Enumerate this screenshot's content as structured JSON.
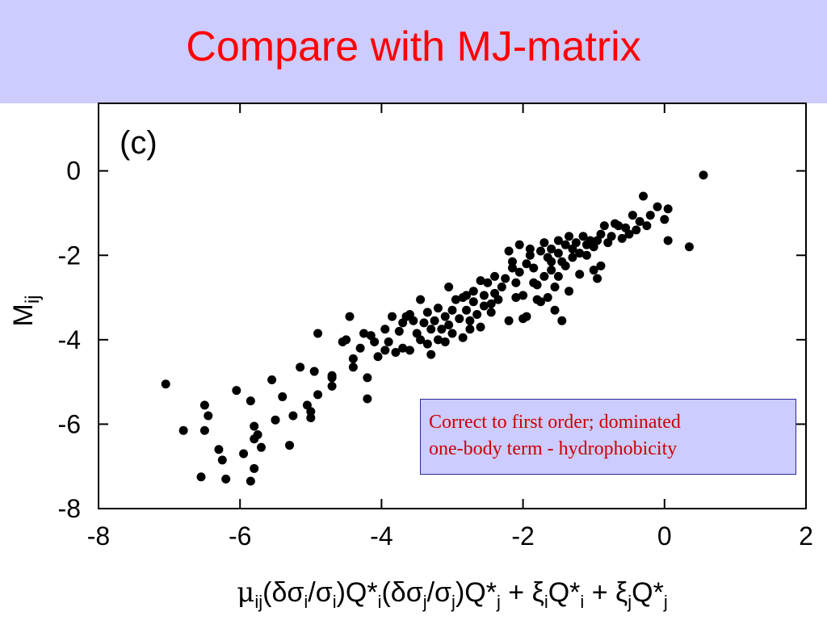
{
  "title": "Compare with MJ-matrix",
  "colors": {
    "header_bg": "#ccccff",
    "title": "#ff0000",
    "callout_text": "#cc0000",
    "points": "#000000"
  },
  "callout": {
    "line1": "Correct to first order; dominated",
    "line2": "one-body term - hydrophobicity"
  },
  "chart_data": {
    "type": "scatter",
    "panel_label": "(c)",
    "xlabel_parts": {
      "mu": "μ",
      "ij": "ij",
      "dsi": "(δσ",
      "i1": "i",
      "slash1": "/σ",
      "i2": "i",
      "q1": ")Q*",
      "i3": "i",
      "dsj": "(δσ",
      "j1": "j",
      "slash2": "/σ",
      "j2": "j",
      "q2": ")Q*",
      "j3": "j",
      "plus1": " + ξ",
      "i4": "i",
      "q3": "Q*",
      "i5": "i",
      "plus2": " + ξ",
      "j4": "j",
      "q4": "Q*",
      "j5": "j"
    },
    "ylabel_parts": {
      "M": "M",
      "ij": "ij"
    },
    "xlim": [
      -8,
      2
    ],
    "ylim": [
      -8,
      1.6
    ],
    "xticks": [
      -8,
      -6,
      -4,
      -2,
      0,
      2
    ],
    "yticks": [
      -8,
      -6,
      -4,
      -2,
      0
    ],
    "xtick_labels": [
      "-8",
      "-6",
      "-4",
      "-2",
      "0",
      "2"
    ],
    "ytick_labels": [
      "-8",
      "-6",
      "-4",
      "-2",
      "0"
    ],
    "grid": false,
    "points": [
      [
        -7.05,
        -5.05
      ],
      [
        -6.8,
        -6.15
      ],
      [
        -6.5,
        -5.55
      ],
      [
        -6.5,
        -6.15
      ],
      [
        -6.45,
        -5.8
      ],
      [
        -6.55,
        -7.25
      ],
      [
        -6.3,
        -6.6
      ],
      [
        -6.25,
        -6.85
      ],
      [
        -6.2,
        -7.3
      ],
      [
        -6.05,
        -5.2
      ],
      [
        -5.95,
        -6.7
      ],
      [
        -5.85,
        -5.45
      ],
      [
        -5.8,
        -6.05
      ],
      [
        -5.8,
        -6.35
      ],
      [
        -5.8,
        -7.05
      ],
      [
        -5.85,
        -7.35
      ],
      [
        -5.75,
        -6.25
      ],
      [
        -5.7,
        -6.55
      ],
      [
        -5.55,
        -4.95
      ],
      [
        -5.5,
        -5.9
      ],
      [
        -5.4,
        -5.35
      ],
      [
        -5.3,
        -6.5
      ],
      [
        -5.25,
        -5.8
      ],
      [
        -5.15,
        -4.65
      ],
      [
        -5.05,
        -5.55
      ],
      [
        -5.0,
        -5.7
      ],
      [
        -5.0,
        -5.85
      ],
      [
        -4.95,
        -4.75
      ],
      [
        -4.9,
        -3.85
      ],
      [
        -4.9,
        -5.3
      ],
      [
        -4.7,
        -4.85
      ],
      [
        -4.7,
        -4.9
      ],
      [
        -4.7,
        -5.1
      ],
      [
        -4.55,
        -4.05
      ],
      [
        -4.5,
        -4.0
      ],
      [
        -4.45,
        -3.45
      ],
      [
        -4.4,
        -4.65
      ],
      [
        -4.4,
        -4.45
      ],
      [
        -4.3,
        -4.2
      ],
      [
        -4.25,
        -3.85
      ],
      [
        -4.2,
        -5.4
      ],
      [
        -4.2,
        -4.9
      ],
      [
        -4.15,
        -3.9
      ],
      [
        -4.1,
        -4.05
      ],
      [
        -4.05,
        -4.4
      ],
      [
        -3.95,
        -3.75
      ],
      [
        -3.95,
        -4.25
      ],
      [
        -3.9,
        -4.05
      ],
      [
        -3.8,
        -4.3
      ],
      [
        -3.85,
        -3.45
      ],
      [
        -3.75,
        -3.8
      ],
      [
        -3.7,
        -4.2
      ],
      [
        -3.7,
        -3.6
      ],
      [
        -3.65,
        -3.45
      ],
      [
        -3.6,
        -3.4
      ],
      [
        -3.6,
        -4.25
      ],
      [
        -3.55,
        -3.55
      ],
      [
        -3.5,
        -3.85
      ],
      [
        -3.45,
        -3.05
      ],
      [
        -3.45,
        -4.0
      ],
      [
        -3.4,
        -3.6
      ],
      [
        -3.35,
        -3.35
      ],
      [
        -3.35,
        -4.1
      ],
      [
        -3.3,
        -3.75
      ],
      [
        -3.3,
        -4.35
      ],
      [
        -3.25,
        -3.55
      ],
      [
        -3.2,
        -3.25
      ],
      [
        -3.2,
        -4.0
      ],
      [
        -3.15,
        -3.75
      ],
      [
        -3.1,
        -3.45
      ],
      [
        -3.1,
        -4.05
      ],
      [
        -3.05,
        -2.75
      ],
      [
        -3.05,
        -3.65
      ],
      [
        -3.0,
        -3.3
      ],
      [
        -3.0,
        -3.85
      ],
      [
        -2.95,
        -3.05
      ],
      [
        -2.9,
        -3.5
      ],
      [
        -2.85,
        -3.95
      ],
      [
        -2.85,
        -3.0
      ],
      [
        -2.8,
        -3.3
      ],
      [
        -2.8,
        -2.95
      ],
      [
        -2.75,
        -3.55
      ],
      [
        -2.75,
        -3.75
      ],
      [
        -2.7,
        -2.85
      ],
      [
        -2.7,
        -3.1
      ],
      [
        -2.65,
        -3.4
      ],
      [
        -2.6,
        -2.6
      ],
      [
        -2.6,
        -3.7
      ],
      [
        -2.55,
        -3.2
      ],
      [
        -2.55,
        -2.95
      ],
      [
        -2.5,
        -2.65
      ],
      [
        -2.45,
        -3.15
      ],
      [
        -2.45,
        -3.35
      ],
      [
        -2.4,
        -2.5
      ],
      [
        -2.4,
        -2.9
      ],
      [
        -2.35,
        -3.05
      ],
      [
        -2.3,
        -2.75
      ],
      [
        -2.25,
        -2.55
      ],
      [
        -2.2,
        -3.55
      ],
      [
        -2.2,
        -1.9
      ],
      [
        -2.15,
        -2.15
      ],
      [
        -2.15,
        -2.3
      ],
      [
        -2.1,
        -2.65
      ],
      [
        -2.1,
        -3.0
      ],
      [
        -2.05,
        -1.75
      ],
      [
        -2.05,
        -2.4
      ],
      [
        -2.0,
        -2.95
      ],
      [
        -2.0,
        -3.5
      ],
      [
        -1.95,
        -2.2
      ],
      [
        -1.95,
        -3.45
      ],
      [
        -1.9,
        -1.85
      ],
      [
        -1.9,
        -2.0
      ],
      [
        -1.85,
        -2.65
      ],
      [
        -1.85,
        -2.3
      ],
      [
        -1.8,
        -2.7
      ],
      [
        -1.8,
        -3.05
      ],
      [
        -1.75,
        -1.9
      ],
      [
        -1.75,
        -3.1
      ],
      [
        -1.7,
        -1.7
      ],
      [
        -1.7,
        -2.5
      ],
      [
        -1.65,
        -2.05
      ],
      [
        -1.65,
        -3.0
      ],
      [
        -1.6,
        -1.85
      ],
      [
        -1.6,
        -2.35
      ],
      [
        -1.6,
        -2.15
      ],
      [
        -1.55,
        -2.75
      ],
      [
        -1.55,
        -3.3
      ],
      [
        -1.5,
        -1.65
      ],
      [
        -1.5,
        -1.95
      ],
      [
        -1.5,
        -2.5
      ],
      [
        -1.45,
        -2.15
      ],
      [
        -1.45,
        -3.55
      ],
      [
        -1.4,
        -1.75
      ],
      [
        -1.4,
        -2.25
      ],
      [
        -1.35,
        -1.55
      ],
      [
        -1.35,
        -2.85
      ],
      [
        -1.3,
        -1.85
      ],
      [
        -1.3,
        -2.05
      ],
      [
        -1.25,
        -1.7
      ],
      [
        -1.2,
        -2.45
      ],
      [
        -1.2,
        -1.95
      ],
      [
        -1.15,
        -1.55
      ],
      [
        -1.1,
        -1.75
      ],
      [
        -1.1,
        -2.0
      ],
      [
        -1.05,
        -1.65
      ],
      [
        -1.0,
        -1.8
      ],
      [
        -1.0,
        -2.35
      ],
      [
        -0.95,
        -1.65
      ],
      [
        -0.95,
        -2.55
      ],
      [
        -0.9,
        -1.5
      ],
      [
        -0.9,
        -2.25
      ],
      [
        -0.85,
        -1.3
      ],
      [
        -0.8,
        -1.7
      ],
      [
        -0.75,
        -1.55
      ],
      [
        -0.7,
        -1.25
      ],
      [
        -0.65,
        -1.3
      ],
      [
        -0.6,
        -1.6
      ],
      [
        -0.55,
        -1.35
      ],
      [
        -0.5,
        -1.5
      ],
      [
        -0.45,
        -1.05
      ],
      [
        -0.4,
        -1.4
      ],
      [
        -0.35,
        -1.2
      ],
      [
        -0.3,
        -0.6
      ],
      [
        -0.25,
        -1.3
      ],
      [
        -0.2,
        -1.05
      ],
      [
        -0.1,
        -0.85
      ],
      [
        0.0,
        -1.15
      ],
      [
        0.05,
        -0.9
      ],
      [
        0.05,
        -1.65
      ],
      [
        0.35,
        -1.8
      ],
      [
        0.55,
        -0.1
      ]
    ]
  }
}
